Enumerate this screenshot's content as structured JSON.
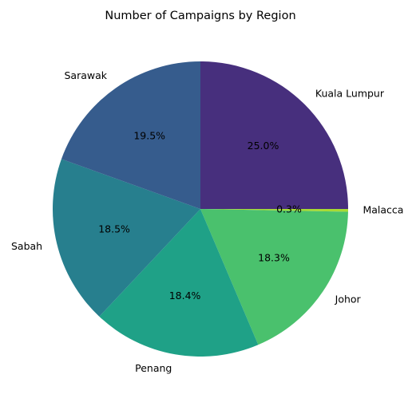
{
  "chart_data": {
    "type": "pie",
    "title": "Number of Campaigns by Region",
    "start_angle_deg": 90,
    "direction": "clockwise",
    "legend": "none",
    "slices": [
      {
        "label": "Kuala Lumpur",
        "pct_label": "25.0%",
        "value": 25.0,
        "color": "#472f7d"
      },
      {
        "label": "Malacca",
        "pct_label": "0.3%",
        "value": 0.3,
        "color": "#a8db34"
      },
      {
        "label": "Johor",
        "pct_label": "18.3%",
        "value": 18.3,
        "color": "#4ac16d"
      },
      {
        "label": "Penang",
        "pct_label": "18.4%",
        "value": 18.4,
        "color": "#1fa187"
      },
      {
        "label": "Sabah",
        "pct_label": "18.5%",
        "value": 18.5,
        "color": "#277f8e"
      },
      {
        "label": "Sarawak",
        "pct_label": "19.5%",
        "value": 19.5,
        "color": "#365c8d"
      }
    ]
  }
}
